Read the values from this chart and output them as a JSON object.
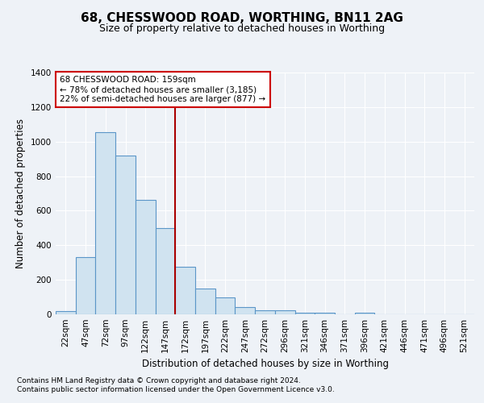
{
  "title1": "68, CHESSWOOD ROAD, WORTHING, BN11 2AG",
  "title2": "Size of property relative to detached houses in Worthing",
  "xlabel": "Distribution of detached houses by size in Worthing",
  "ylabel": "Number of detached properties",
  "categories": [
    "22sqm",
    "47sqm",
    "72sqm",
    "97sqm",
    "122sqm",
    "147sqm",
    "172sqm",
    "197sqm",
    "222sqm",
    "247sqm",
    "272sqm",
    "296sqm",
    "321sqm",
    "346sqm",
    "371sqm",
    "396sqm",
    "421sqm",
    "446sqm",
    "471sqm",
    "496sqm",
    "521sqm"
  ],
  "values": [
    20,
    330,
    1055,
    920,
    665,
    500,
    275,
    150,
    100,
    40,
    25,
    22,
    10,
    10,
    0,
    10,
    0,
    0,
    0,
    0,
    0
  ],
  "bar_color": "#d0e3f0",
  "bar_edge_color": "#5b96c8",
  "vline_pos": 5.5,
  "annotation_title": "68 CHESSWOOD ROAD: 159sqm",
  "annotation_line1": "← 78% of detached houses are smaller (3,185)",
  "annotation_line2": "22% of semi-detached houses are larger (877) →",
  "ylim": [
    0,
    1400
  ],
  "yticks": [
    0,
    200,
    400,
    600,
    800,
    1000,
    1200,
    1400
  ],
  "footer1": "Contains HM Land Registry data © Crown copyright and database right 2024.",
  "footer2": "Contains public sector information licensed under the Open Government Licence v3.0.",
  "bg_color": "#eef2f7",
  "plot_bg_color": "#eef2f7",
  "grid_color": "#ffffff",
  "annotation_box_color": "#ffffff",
  "annotation_box_edge": "#cc0000",
  "vline_color": "#aa0000",
  "title1_fontsize": 11,
  "title2_fontsize": 9,
  "xlabel_fontsize": 8.5,
  "ylabel_fontsize": 8.5,
  "tick_fontsize": 7.5,
  "annot_fontsize": 7.5,
  "footer_fontsize": 6.5
}
